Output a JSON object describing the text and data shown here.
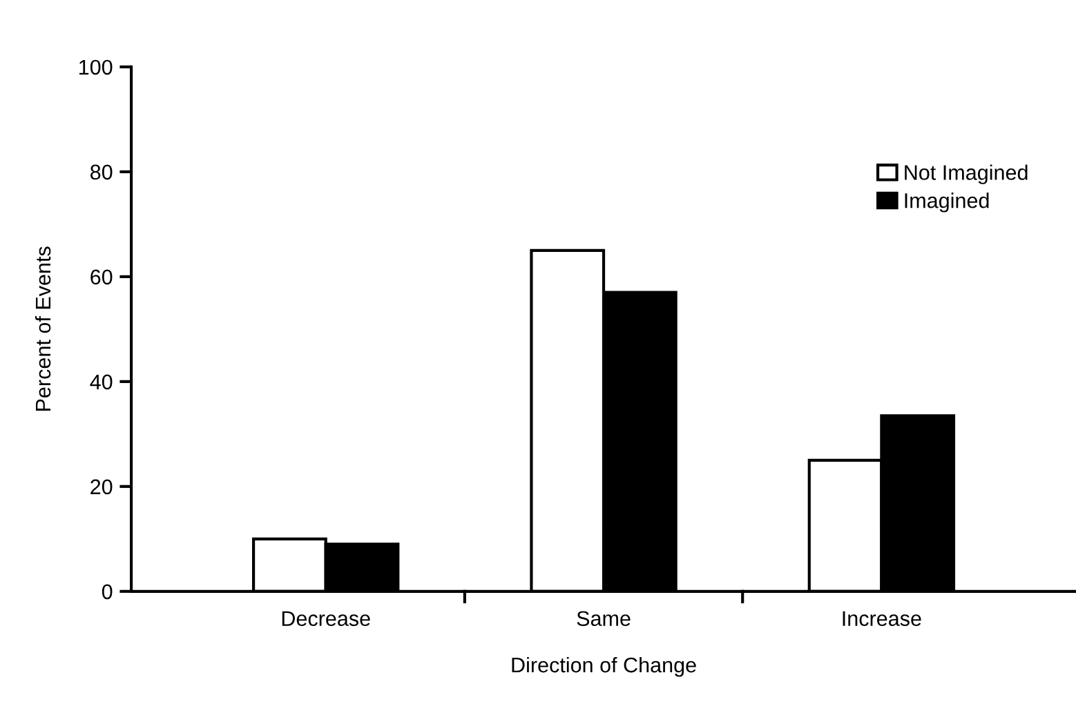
{
  "chart_data": {
    "type": "bar",
    "xlabel": "Direction of Change",
    "ylabel": "Percent of Events",
    "categories": [
      "Decrease",
      "Same",
      "Increase"
    ],
    "series": [
      {
        "name": "Not Imagined",
        "color": "#ffffff",
        "values": [
          10,
          65,
          25
        ]
      },
      {
        "name": "Imagined",
        "color": "#000000",
        "values": [
          9,
          57,
          33.5
        ]
      }
    ],
    "ylim": [
      0,
      100
    ],
    "yticks": [
      0,
      20,
      40,
      60,
      80,
      100
    ],
    "grid": false,
    "legend": "top right"
  }
}
